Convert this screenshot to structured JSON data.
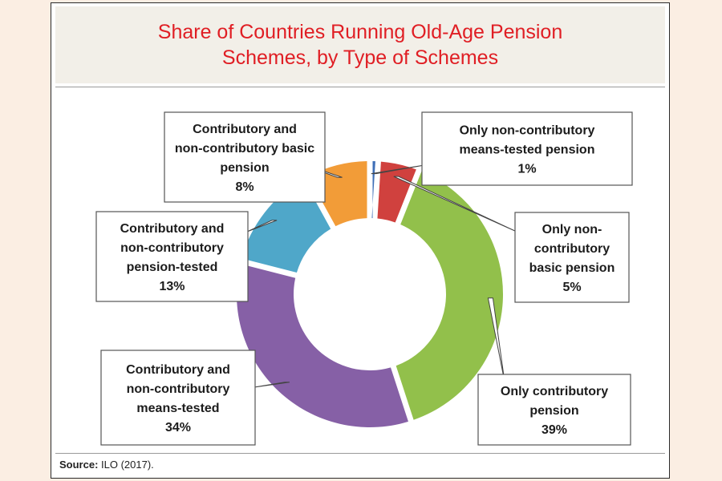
{
  "title": [
    "Share of Countries Running Old-Age Pension",
    "Schemes, by Type of Schemes"
  ],
  "source": {
    "label": "Source:",
    "text": "ILO (2017)."
  },
  "chart_data": {
    "type": "pie",
    "donut": true,
    "unit": "%",
    "slices": [
      {
        "label": [
          "Only non-contributory",
          "means-tested pension"
        ],
        "value": 1,
        "display": "1%",
        "color": "#3f6fb7"
      },
      {
        "label": [
          "Only non-",
          "contributory",
          "basic pension"
        ],
        "value": 5,
        "display": "5%",
        "color": "#d0413e"
      },
      {
        "label": [
          "Only contributory",
          "pension"
        ],
        "value": 39,
        "display": "39%",
        "color": "#92c04b"
      },
      {
        "label": [
          "Contributory and",
          "non-contributory",
          "means-tested"
        ],
        "value": 34,
        "display": "34%",
        "color": "#8660a6"
      },
      {
        "label": [
          "Contributory and",
          "non-contributory",
          "pension-tested"
        ],
        "value": 13,
        "display": "13%",
        "color": "#4fa7c9"
      },
      {
        "label": [
          "Contributory and",
          "non-contributory basic",
          "pension"
        ],
        "value": 8,
        "display": "8%",
        "color": "#f29c38"
      }
    ]
  }
}
